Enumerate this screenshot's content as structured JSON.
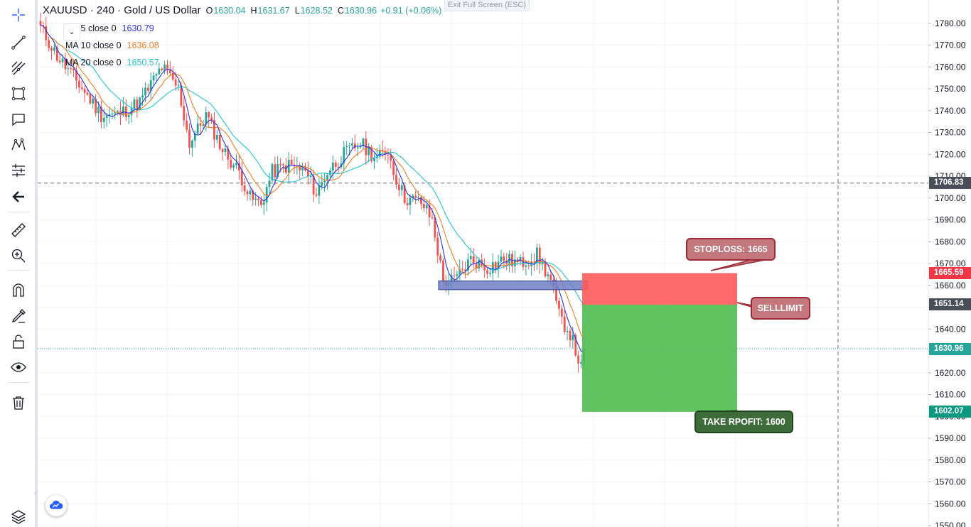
{
  "legend": {
    "symbol": "XAUUSD · 240 · Gold / US Dollar",
    "open_label": "O",
    "open": "1630.04",
    "high_label": "H",
    "high": "1631.67",
    "low_label": "L",
    "low": "1628.52",
    "close_label": "C",
    "close": "1630.96",
    "change": "+0.91 (+0.06%)",
    "collapse_glyph": "⌄",
    "ma": [
      {
        "label": "MA 5 close 0",
        "value": "1630.79",
        "color": "#2b34e0"
      },
      {
        "label": "MA 10 close 0",
        "value": "1636.08",
        "color": "#f57c1f"
      },
      {
        "label": "MA 20 close 0",
        "value": "1650.57",
        "color": "#22c4d4"
      }
    ]
  },
  "exit_full_screen": "Exit Full Screen (ESC)",
  "toolbar": {
    "icons": [
      "crosshair-icon",
      "trend-line-icon",
      "fib-retracement-icon",
      "rectangle-icon",
      "text-note-icon",
      "pattern-icon",
      "prediction-icon",
      "back-arrow-icon",
      "ruler-icon",
      "zoom-in-icon",
      "magnet-icon",
      "lock-drawing-icon",
      "unlock-icon",
      "eye-icon",
      "trash-icon",
      "layers-icon"
    ],
    "collapse_glyph": "‹"
  },
  "annotations": {
    "stoploss": "STOPLOSS: 1665",
    "selllimit": "SELLLIMIT",
    "take_profit": "TAKE RPOFIT: 1600"
  },
  "price_labels": {
    "crosshair": {
      "value": 1706.83,
      "text": "1706.83",
      "color": "#4a4e59"
    },
    "stoploss": {
      "value": 1665.59,
      "text": "1665.59",
      "color": "#f23645"
    },
    "entry": {
      "value": 1651.14,
      "text": "1651.14",
      "color": "#4a4e59"
    },
    "current": {
      "value": 1630.96,
      "text": "1630.96",
      "color": "#26a69a"
    },
    "target": {
      "value": 1602.07,
      "text": "1602.07",
      "color": "#089981"
    }
  },
  "colors": {
    "up": "#26a69a",
    "down": "#ef5350",
    "grid": "#f0f3fa",
    "stop_zone": "#ff5a5a",
    "target_zone": "#4fbc4f",
    "zone_rect": "#6f7fc4"
  },
  "chart_data": {
    "type": "candlestick",
    "title": "XAUUSD · 240 · Gold / US Dollar",
    "ylim": [
      1550,
      1785
    ],
    "y_ticks": [
      1550,
      1560,
      1570,
      1580,
      1590,
      1600,
      1610,
      1620,
      1630,
      1640,
      1650,
      1660,
      1670,
      1680,
      1690,
      1700,
      1710,
      1720,
      1730,
      1740,
      1750,
      1760,
      1770,
      1780
    ],
    "y_tick_labels": [
      "1550.00",
      "1560.00",
      "1570.00",
      "1580.00",
      "1590.00",
      "1600.00",
      "1610.00",
      "1620.00",
      "1630.00",
      "1640.00",
      "1650.00",
      "1660.00",
      "1670.00",
      "1680.00",
      "1690.00",
      "1700.00",
      "1710.00",
      "1720.00",
      "1730.00",
      "1740.00",
      "1750.00",
      "1760.00",
      "1770.00",
      "1780.00"
    ],
    "grid": true,
    "anchors": [
      {
        "bar": 0,
        "price": 1778
      },
      {
        "bar": 6,
        "price": 1765
      },
      {
        "bar": 14,
        "price": 1752
      },
      {
        "bar": 22,
        "price": 1738
      },
      {
        "bar": 28,
        "price": 1738
      },
      {
        "bar": 36,
        "price": 1744
      },
      {
        "bar": 44,
        "price": 1760
      },
      {
        "bar": 50,
        "price": 1750
      },
      {
        "bar": 54,
        "price": 1725
      },
      {
        "bar": 60,
        "price": 1738
      },
      {
        "bar": 66,
        "price": 1722
      },
      {
        "bar": 72,
        "price": 1712
      },
      {
        "bar": 76,
        "price": 1700
      },
      {
        "bar": 80,
        "price": 1697
      },
      {
        "bar": 84,
        "price": 1712
      },
      {
        "bar": 90,
        "price": 1715
      },
      {
        "bar": 96,
        "price": 1712
      },
      {
        "bar": 100,
        "price": 1702
      },
      {
        "bar": 104,
        "price": 1712
      },
      {
        "bar": 110,
        "price": 1720
      },
      {
        "bar": 116,
        "price": 1725
      },
      {
        "bar": 122,
        "price": 1718
      },
      {
        "bar": 126,
        "price": 1722
      },
      {
        "bar": 128,
        "price": 1712
      },
      {
        "bar": 132,
        "price": 1700
      },
      {
        "bar": 138,
        "price": 1698
      },
      {
        "bar": 142,
        "price": 1690
      },
      {
        "bar": 146,
        "price": 1662
      },
      {
        "bar": 150,
        "price": 1662
      },
      {
        "bar": 156,
        "price": 1672
      },
      {
        "bar": 162,
        "price": 1668
      },
      {
        "bar": 168,
        "price": 1672
      },
      {
        "bar": 174,
        "price": 1670
      },
      {
        "bar": 180,
        "price": 1674
      },
      {
        "bar": 185,
        "price": 1662
      },
      {
        "bar": 188,
        "price": 1646
      },
      {
        "bar": 192,
        "price": 1638
      },
      {
        "bar": 196,
        "price": 1622
      },
      {
        "bar": 197,
        "price": 1631
      }
    ],
    "series": [
      {
        "name": "MA 5 close 0",
        "period": 5,
        "last": 1630.79
      },
      {
        "name": "MA 10 close 0",
        "period": 10,
        "last": 1636.08
      },
      {
        "name": "MA 20 close 0",
        "period": 20,
        "last": 1650.57
      }
    ],
    "horizontal_lines": [
      1706.83,
      1630.96
    ],
    "support_zone": [
      1658,
      1662
    ],
    "short_position": {
      "entry": 1651.14,
      "stop": 1665.59,
      "target": 1602.07
    }
  }
}
